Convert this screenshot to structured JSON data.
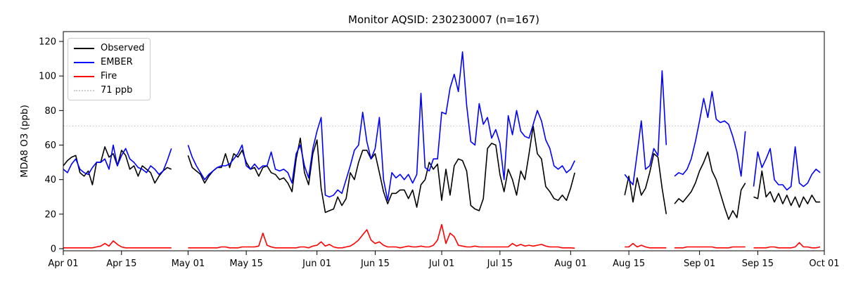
{
  "chart_data": {
    "type": "line",
    "title": "Monitor AQSID: 230230007 (n=167)",
    "xlabel": "",
    "ylabel": "MDA8 O3 (ppb)",
    "ylim": [
      0,
      120
    ],
    "yticks": [
      0,
      20,
      40,
      60,
      80,
      100,
      120
    ],
    "x_unit": "day-of-season, Apr 01 = 0",
    "x_range_days": 183,
    "xticks": [
      {
        "label": "Apr 01",
        "day": 0
      },
      {
        "label": "Apr 15",
        "day": 14
      },
      {
        "label": "May 01",
        "day": 30
      },
      {
        "label": "May 15",
        "day": 44
      },
      {
        "label": "Jun 01",
        "day": 61
      },
      {
        "label": "Jun 15",
        "day": 75
      },
      {
        "label": "Jul 01",
        "day": 91
      },
      {
        "label": "Jul 15",
        "day": 105
      },
      {
        "label": "Aug 01",
        "day": 122
      },
      {
        "label": "Aug 15",
        "day": 136
      },
      {
        "label": "Sep 01",
        "day": 153
      },
      {
        "label": "Sep 15",
        "day": 167
      },
      {
        "label": "Oct 01",
        "day": 183
      }
    ],
    "ref_line": {
      "label": "71 ppb",
      "value": 71,
      "color": "#c8c8c8",
      "style": "dotted"
    },
    "legend_position": "upper-left",
    "grid": false,
    "series": [
      {
        "name": "Observed",
        "color": "#000000",
        "values": [
          48,
          51,
          53,
          54,
          44,
          42,
          45,
          37,
          50,
          50,
          59,
          53,
          55,
          48,
          57,
          54,
          46,
          48,
          42,
          48,
          46,
          44,
          38,
          42,
          45,
          47,
          46,
          null,
          null,
          null,
          54,
          47,
          45,
          43,
          38,
          42,
          45,
          47,
          47,
          55,
          47,
          55,
          53,
          57,
          50,
          46,
          47,
          42,
          47,
          48,
          44,
          43,
          40,
          41,
          38,
          33,
          52,
          64,
          44,
          37,
          55,
          63,
          35,
          21,
          22,
          23,
          30,
          25,
          29,
          44,
          40,
          50,
          57,
          57,
          52,
          55,
          44,
          33,
          26,
          32,
          32,
          34,
          34,
          29,
          34,
          24,
          37,
          40,
          50,
          46,
          49,
          28,
          46,
          31,
          48,
          52,
          51,
          45,
          25,
          23,
          22,
          29,
          58,
          61,
          60,
          43,
          33,
          46,
          40,
          31,
          45,
          40,
          55,
          71,
          55,
          52,
          36,
          33,
          29,
          28,
          31,
          28,
          35,
          44,
          null,
          null,
          null,
          null,
          null,
          null,
          null,
          null,
          null,
          null,
          null,
          31,
          42,
          27,
          41,
          31,
          35,
          44,
          55,
          53,
          35,
          20,
          null,
          26,
          29,
          27,
          30,
          33,
          38,
          45,
          50,
          56,
          45,
          40,
          32,
          24,
          17,
          22,
          18,
          34,
          38,
          null,
          30,
          29,
          45,
          30,
          33,
          27,
          32,
          26,
          31,
          25,
          30,
          24,
          30,
          26,
          31,
          27,
          27
        ]
      },
      {
        "name": "EMBER",
        "color": "#0000ff",
        "values": [
          46,
          44,
          49,
          52,
          46,
          44,
          43,
          47,
          50,
          50,
          52,
          46,
          60,
          48,
          54,
          58,
          52,
          50,
          47,
          46,
          44,
          48,
          46,
          43,
          45,
          51,
          58,
          null,
          null,
          null,
          60,
          53,
          48,
          44,
          40,
          43,
          45,
          47,
          48,
          48,
          49,
          52,
          55,
          60,
          48,
          46,
          49,
          46,
          48,
          48,
          56,
          46,
          45,
          46,
          44,
          38,
          55,
          60,
          48,
          41,
          58,
          68,
          76,
          31,
          30,
          31,
          34,
          32,
          40,
          48,
          57,
          60,
          79,
          62,
          52,
          58,
          76,
          40,
          28,
          44,
          41,
          43,
          40,
          43,
          38,
          43,
          90,
          47,
          45,
          52,
          52,
          79,
          78,
          93,
          101,
          91,
          114,
          83,
          62,
          60,
          84,
          72,
          76,
          64,
          69,
          61,
          40,
          77,
          66,
          80,
          68,
          65,
          64,
          72,
          80,
          74,
          63,
          58,
          48,
          46,
          48,
          44,
          46,
          51,
          null,
          null,
          null,
          null,
          null,
          null,
          null,
          null,
          null,
          null,
          null,
          43,
          40,
          37,
          55,
          74,
          46,
          48,
          58,
          54,
          103,
          60,
          null,
          42,
          44,
          43,
          46,
          52,
          62,
          74,
          87,
          76,
          91,
          75,
          73,
          74,
          72,
          65,
          56,
          42,
          68,
          null,
          36,
          56,
          47,
          52,
          58,
          40,
          37,
          37,
          34,
          36,
          59,
          38,
          36,
          38,
          43,
          46,
          44
        ]
      },
      {
        "name": "Fire",
        "color": "#ff0000",
        "values": [
          0.5,
          0.5,
          0.5,
          0.5,
          0.5,
          0.5,
          0.5,
          0.5,
          1,
          1.5,
          3,
          1.5,
          4.5,
          2.5,
          1,
          0.5,
          0.5,
          0.5,
          0.5,
          0.5,
          0.5,
          0.5,
          0.5,
          0.5,
          0.5,
          0.5,
          0.5,
          null,
          null,
          null,
          0.5,
          0.5,
          0.5,
          0.5,
          0.5,
          0.5,
          0.5,
          0.5,
          1,
          1,
          0.5,
          0.5,
          0.5,
          1,
          1,
          1,
          1,
          1.5,
          9,
          2,
          1,
          0.5,
          0.5,
          0.5,
          0.5,
          0.5,
          0.5,
          1,
          1,
          0.5,
          1.5,
          2,
          4,
          1.5,
          2.5,
          1,
          0.5,
          0.5,
          1,
          1.5,
          3,
          5,
          8,
          11,
          5,
          3,
          4,
          2,
          1,
          1,
          1,
          0.5,
          1,
          1.5,
          1,
          1,
          1.5,
          1,
          1,
          2,
          5,
          14,
          3,
          9,
          7,
          2,
          1.5,
          1,
          1,
          1.5,
          1,
          1,
          1,
          1,
          1,
          1,
          1,
          1,
          3,
          1.5,
          2.5,
          1.5,
          2,
          1.5,
          2,
          2.5,
          1.5,
          1,
          1,
          1,
          0.5,
          0.5,
          0.5,
          0.3,
          null,
          null,
          null,
          null,
          null,
          null,
          null,
          null,
          null,
          null,
          null,
          1,
          1,
          3,
          1,
          2,
          1,
          0.5,
          0.5,
          0.5,
          0.5,
          0.5,
          null,
          0.5,
          0.5,
          0.5,
          1,
          1,
          1,
          1,
          1,
          1,
          1,
          0.5,
          0.5,
          0.5,
          0.5,
          1,
          1,
          1,
          1,
          null,
          0.5,
          0.5,
          0.5,
          0.5,
          1,
          1,
          0.5,
          0.5,
          0.5,
          0.5,
          1,
          3.5,
          1,
          1,
          0.5,
          0.5,
          1
        ]
      }
    ]
  }
}
